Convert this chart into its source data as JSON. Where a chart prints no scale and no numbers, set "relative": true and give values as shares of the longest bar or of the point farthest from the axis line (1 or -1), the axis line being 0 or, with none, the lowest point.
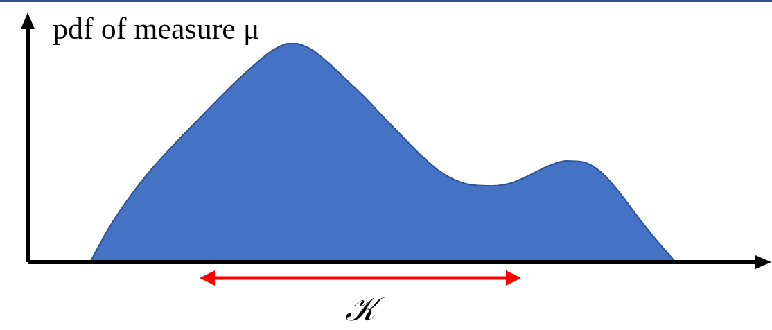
{
  "chart_data": {
    "type": "area",
    "relative": true,
    "ylabel": "pdf of measure μ",
    "annotations": [
      "𝒦"
    ],
    "color": "#4472c4",
    "categories": [
      null,
      null,
      null,
      null,
      null,
      null,
      null,
      null,
      null,
      null,
      null,
      null,
      null,
      null,
      null,
      null,
      null,
      null,
      null,
      null,
      null,
      null,
      null,
      null,
      null,
      null,
      null,
      null,
      null,
      null,
      null,
      null,
      null
    ],
    "values": [
      0,
      0.152,
      0.278,
      0.389,
      0.484,
      0.573,
      0.658,
      0.744,
      0.826,
      0.902,
      0.968,
      1,
      0.975,
      0.911,
      0.832,
      0.753,
      0.665,
      0.579,
      0.494,
      0.421,
      0.373,
      0.351,
      0.348,
      0.361,
      0.396,
      0.437,
      0.462,
      0.456,
      0.405,
      0.31,
      0.199,
      0.095,
      0
    ]
  }
}
